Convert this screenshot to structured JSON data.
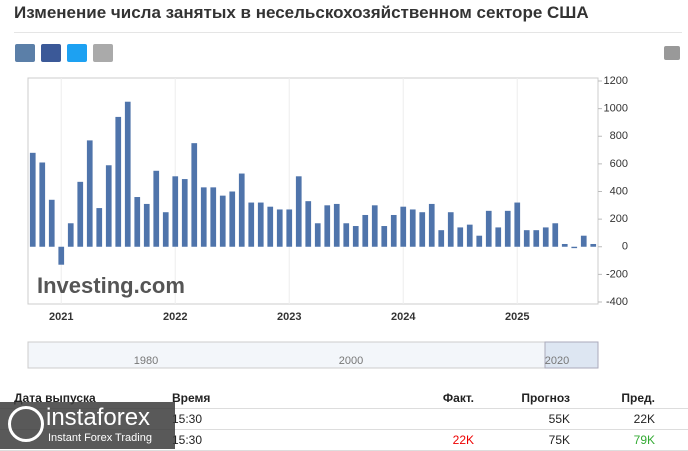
{
  "title": "Изменение числа занятых в несельскохозяйственном секторе США",
  "chart_data": {
    "type": "bar",
    "color": "#4f74ab",
    "axis_side": "right",
    "categories": [
      null,
      null,
      null,
      "2021",
      null,
      null,
      null,
      null,
      null,
      null,
      null,
      null,
      null,
      null,
      null,
      "2022",
      null,
      null,
      null,
      null,
      null,
      null,
      null,
      null,
      null,
      null,
      null,
      "2023",
      null,
      null,
      null,
      null,
      null,
      null,
      null,
      null,
      null,
      null,
      null,
      "2024",
      null,
      null,
      null,
      null,
      null,
      null,
      null,
      null,
      null,
      null,
      null,
      "2025",
      null,
      null,
      null,
      null,
      null,
      null,
      null,
      null
    ],
    "values": [
      680,
      610,
      340,
      -130,
      170,
      470,
      770,
      280,
      590,
      940,
      1050,
      360,
      310,
      550,
      250,
      510,
      490,
      750,
      430,
      430,
      370,
      400,
      530,
      320,
      320,
      290,
      270,
      270,
      510,
      330,
      170,
      300,
      310,
      170,
      150,
      230,
      300,
      150,
      230,
      290,
      270,
      250,
      310,
      120,
      250,
      140,
      160,
      80,
      260,
      140,
      260,
      320,
      120,
      120,
      140,
      170,
      20,
      -10,
      80,
      20
    ],
    "ylim": [
      -400,
      1200
    ],
    "yticks": [
      -400,
      -200,
      0,
      200,
      400,
      600,
      800,
      1000,
      1200
    ],
    "watermark": "Investing.com",
    "navigator_labels": [
      "1980",
      "2000",
      "2020"
    ]
  },
  "table": {
    "header": [
      "Дата выпуска",
      "Время",
      "Факт.",
      "Прогноз",
      "Пред."
    ],
    "rows": [
      {
        "time": "15:30",
        "forecast": "55K",
        "previous": "22K"
      },
      {
        "time": "15:30",
        "actual": "22K",
        "forecast": "75K",
        "previous": "79K"
      }
    ]
  },
  "watermark": {
    "brand": "instaforex",
    "tagline": "Instant Forex Trading"
  }
}
